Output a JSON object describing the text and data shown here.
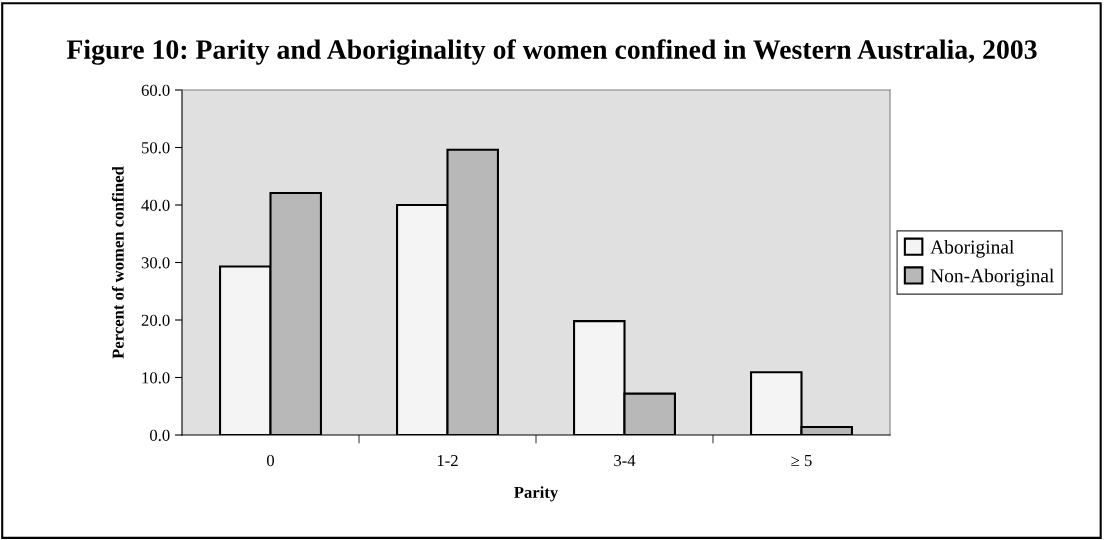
{
  "chart_data": {
    "type": "bar",
    "title": "Figure 10: Parity and Aboriginality of women confined in Western Australia, 2003",
    "xlabel": "Parity",
    "ylabel": "Percent of women confined",
    "categories": [
      "0",
      "1-2",
      "3-4",
      "≥ 5"
    ],
    "series": [
      {
        "name": "Aboriginal",
        "color": "#f4f4f4",
        "values": [
          29.3,
          40.0,
          19.8,
          10.9
        ]
      },
      {
        "name": "Non-Aboriginal",
        "color": "#b8b8b8",
        "values": [
          42.1,
          49.6,
          7.2,
          1.4
        ]
      }
    ],
    "ylim": [
      0,
      60
    ],
    "yticks": [
      {
        "value": 0,
        "label": "0.0"
      },
      {
        "value": 10,
        "label": "10.0"
      },
      {
        "value": 20,
        "label": "20.0"
      },
      {
        "value": 30,
        "label": "30.0"
      },
      {
        "value": 40,
        "label": "40.0"
      },
      {
        "value": 50,
        "label": "50.0"
      },
      {
        "value": 60,
        "label": "60.0"
      }
    ],
    "grid": false,
    "legend": "right"
  }
}
